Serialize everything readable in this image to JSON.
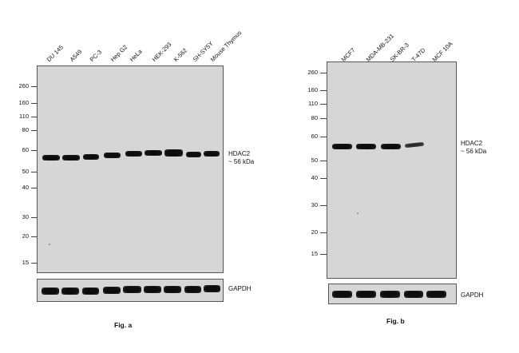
{
  "fig_a": {
    "lanes": [
      "DU 145",
      "A549",
      "PC-3",
      "Hep G2",
      "HeLa",
      "HEK-293",
      "K-562",
      "SH-SY5Y",
      "Mouse Thymus"
    ],
    "mw_markers": [
      "260",
      "160",
      "110",
      "80",
      "60",
      "50",
      "40",
      "30",
      "20",
      "15"
    ],
    "target_label": "HDAC2",
    "target_size": "~ 56 kDa",
    "loading_label": "GAPDH",
    "caption": "Fig. a"
  },
  "fig_b": {
    "lanes": [
      "MCF7",
      "MDA-MB-231",
      "SK-BR-3",
      "T-47D",
      "MCF 10A"
    ],
    "mw_markers": [
      "260",
      "160",
      "110",
      "80",
      "60",
      "50",
      "40",
      "30",
      "20",
      "15"
    ],
    "target_label": "HDAC2",
    "target_size": "~ 56 kDa",
    "loading_label": "GAPDH",
    "caption": "Fig. b"
  }
}
